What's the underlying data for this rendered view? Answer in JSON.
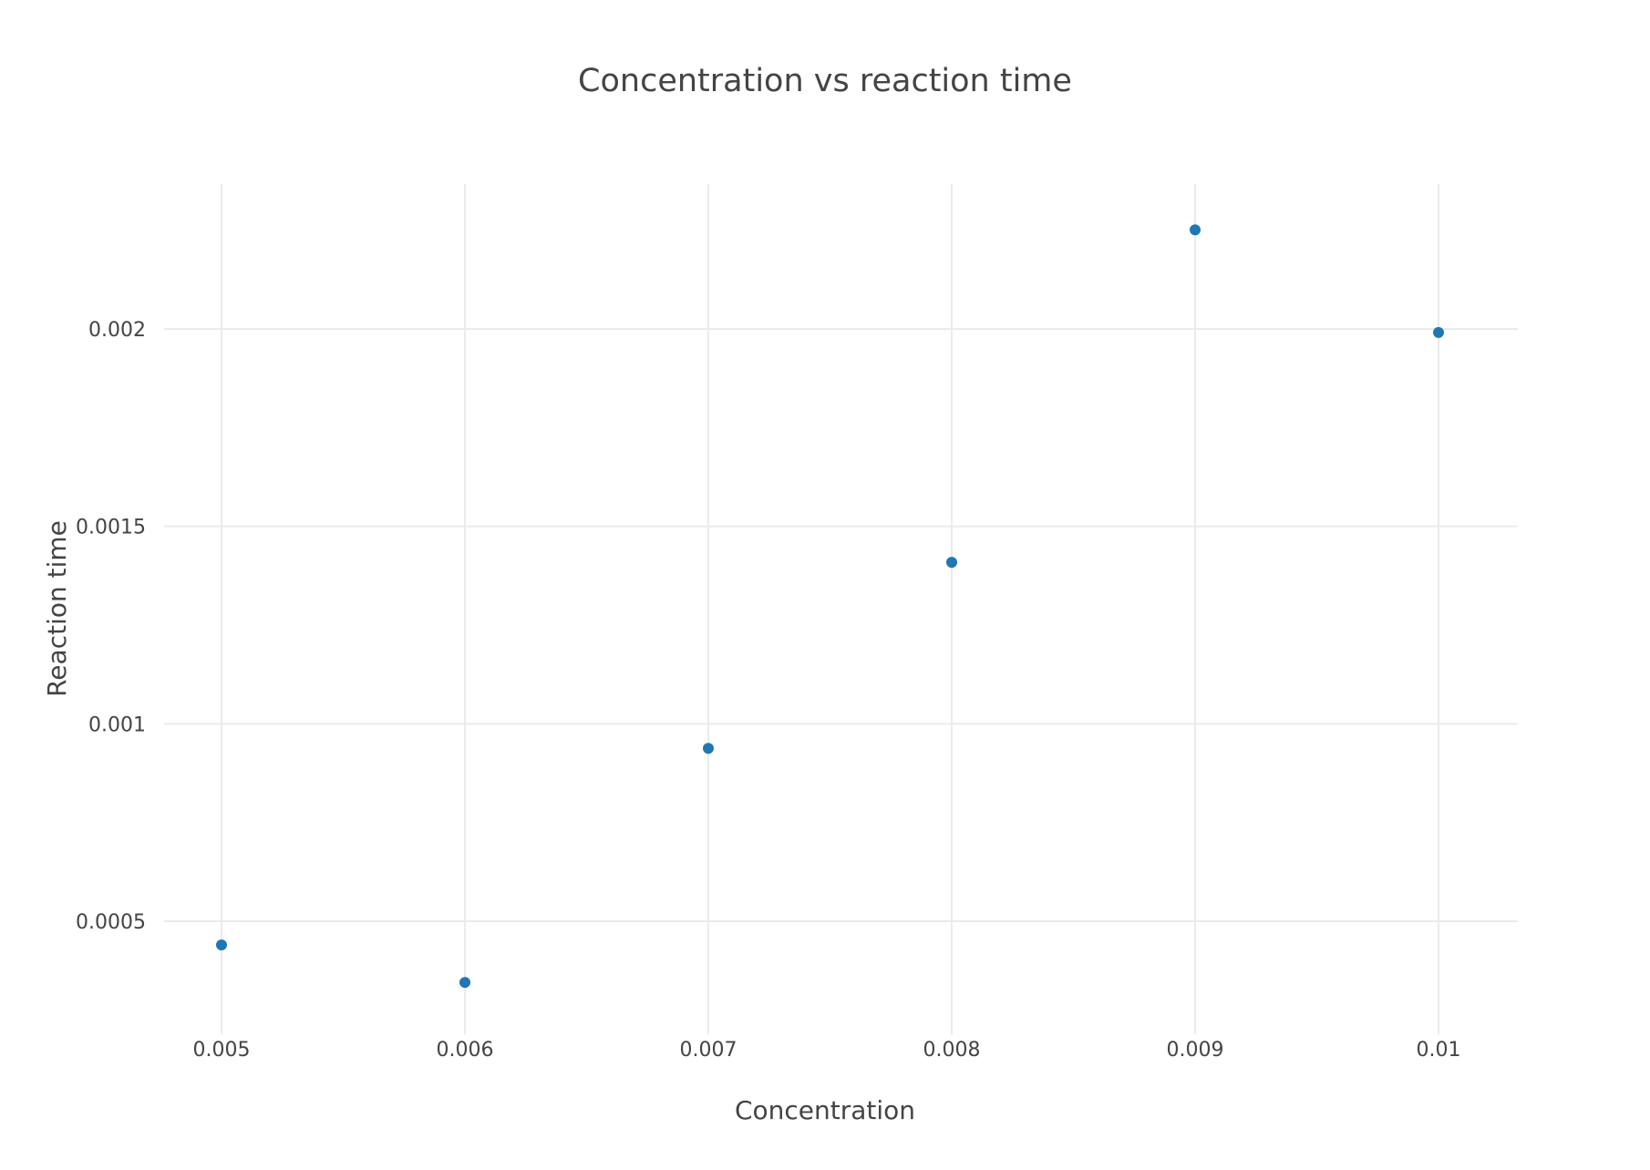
{
  "chart_data": {
    "type": "scatter",
    "title": "Concentration vs reaction time",
    "xlabel": "Concentration",
    "ylabel": "Reaction time",
    "xlim": [
      0.0047,
      0.0103
    ],
    "ylim": [
      0.00024,
      0.00237
    ],
    "xticks": [
      0.005,
      0.006,
      0.007,
      0.008,
      0.009,
      0.01
    ],
    "xtick_labels": [
      "0.005",
      "0.006",
      "0.007",
      "0.008",
      "0.009",
      "0.01"
    ],
    "yticks": [
      0.0005,
      0.001,
      0.0015,
      0.002
    ],
    "ytick_labels": [
      "0.0005",
      "0.001",
      "0.0015",
      "0.002"
    ],
    "grid": true,
    "legend": "none",
    "series": [
      {
        "color": "#1f77b4",
        "x": [
          0.005,
          0.006,
          0.007,
          0.008,
          0.009,
          0.01
        ],
        "y": [
          0.00044,
          0.000345,
          0.000938,
          0.001409,
          0.002251,
          0.001991
        ]
      }
    ]
  }
}
